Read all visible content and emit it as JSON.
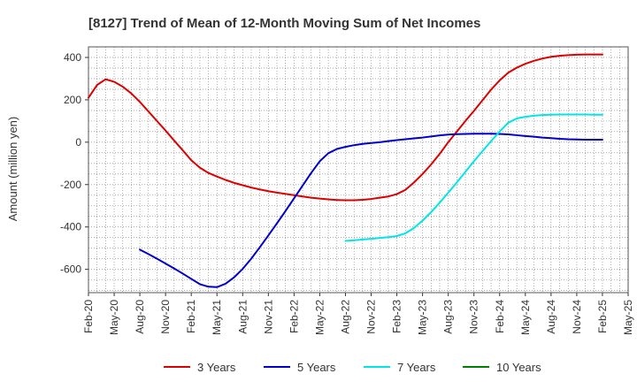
{
  "chart_data": {
    "type": "line",
    "title": "[8127]  Trend of Mean of 12-Month Moving Sum of Net Incomes",
    "ylabel": "Amount (million yen)",
    "xlabel": "",
    "ylim": [
      -710,
      450
    ],
    "y_ticks": [
      400,
      200,
      0,
      -200,
      -400,
      -600
    ],
    "x_ticks": [
      "Feb-20",
      "May-20",
      "Aug-20",
      "Nov-20",
      "Feb-21",
      "May-21",
      "Aug-21",
      "Nov-21",
      "Feb-22",
      "May-22",
      "Aug-22",
      "Nov-22",
      "Feb-23",
      "May-23",
      "Aug-23",
      "Nov-23",
      "Feb-24",
      "May-24",
      "Aug-24",
      "Nov-24",
      "Feb-25",
      "May-25"
    ],
    "x_start": "2020-02",
    "x_end": "2025-05",
    "grid": true,
    "legend_position": "bottom",
    "series": [
      {
        "name": "3 Years",
        "color": "#dd0000",
        "points": [
          [
            "2020-02",
            210
          ],
          [
            "2020-03",
            270
          ],
          [
            "2020-04",
            297
          ],
          [
            "2020-05",
            285
          ],
          [
            "2020-06",
            262
          ],
          [
            "2020-07",
            230
          ],
          [
            "2020-08",
            190
          ],
          [
            "2020-09",
            145
          ],
          [
            "2020-10",
            100
          ],
          [
            "2020-11",
            55
          ],
          [
            "2020-12",
            8
          ],
          [
            "2021-01",
            -38
          ],
          [
            "2021-02",
            -85
          ],
          [
            "2021-03",
            -120
          ],
          [
            "2021-04",
            -145
          ],
          [
            "2021-05",
            -162
          ],
          [
            "2021-06",
            -178
          ],
          [
            "2021-07",
            -192
          ],
          [
            "2021-08",
            -203
          ],
          [
            "2021-09",
            -214
          ],
          [
            "2021-10",
            -223
          ],
          [
            "2021-11",
            -231
          ],
          [
            "2021-12",
            -238
          ],
          [
            "2022-01",
            -244
          ],
          [
            "2022-02",
            -250
          ],
          [
            "2022-03",
            -256
          ],
          [
            "2022-04",
            -262
          ],
          [
            "2022-05",
            -266
          ],
          [
            "2022-06",
            -270
          ],
          [
            "2022-07",
            -273
          ],
          [
            "2022-08",
            -274
          ],
          [
            "2022-09",
            -274
          ],
          [
            "2022-10",
            -272
          ],
          [
            "2022-11",
            -268
          ],
          [
            "2022-12",
            -262
          ],
          [
            "2023-01",
            -256
          ],
          [
            "2023-02",
            -245
          ],
          [
            "2023-03",
            -225
          ],
          [
            "2023-04",
            -190
          ],
          [
            "2023-05",
            -150
          ],
          [
            "2023-06",
            -105
          ],
          [
            "2023-07",
            -55
          ],
          [
            "2023-08",
            0
          ],
          [
            "2023-09",
            50
          ],
          [
            "2023-10",
            100
          ],
          [
            "2023-11",
            148
          ],
          [
            "2023-12",
            198
          ],
          [
            "2024-01",
            248
          ],
          [
            "2024-02",
            292
          ],
          [
            "2024-03",
            328
          ],
          [
            "2024-04",
            352
          ],
          [
            "2024-05",
            370
          ],
          [
            "2024-06",
            384
          ],
          [
            "2024-07",
            395
          ],
          [
            "2024-08",
            403
          ],
          [
            "2024-09",
            408
          ],
          [
            "2024-10",
            411
          ],
          [
            "2024-11",
            413
          ],
          [
            "2024-12",
            414
          ],
          [
            "2025-01",
            414
          ],
          [
            "2025-02",
            414
          ]
        ]
      },
      {
        "name": "5 Years",
        "color": "#0000cc",
        "points": [
          [
            "2020-08",
            -507
          ],
          [
            "2020-09",
            -528
          ],
          [
            "2020-10",
            -550
          ],
          [
            "2020-11",
            -573
          ],
          [
            "2020-12",
            -596
          ],
          [
            "2021-01",
            -620
          ],
          [
            "2021-02",
            -645
          ],
          [
            "2021-03",
            -670
          ],
          [
            "2021-04",
            -682
          ],
          [
            "2021-05",
            -684
          ],
          [
            "2021-06",
            -668
          ],
          [
            "2021-07",
            -638
          ],
          [
            "2021-08",
            -598
          ],
          [
            "2021-09",
            -550
          ],
          [
            "2021-10",
            -496
          ],
          [
            "2021-11",
            -440
          ],
          [
            "2021-12",
            -383
          ],
          [
            "2022-01",
            -325
          ],
          [
            "2022-02",
            -265
          ],
          [
            "2022-03",
            -205
          ],
          [
            "2022-04",
            -145
          ],
          [
            "2022-05",
            -90
          ],
          [
            "2022-06",
            -52
          ],
          [
            "2022-07",
            -32
          ],
          [
            "2022-08",
            -22
          ],
          [
            "2022-09",
            -14
          ],
          [
            "2022-10",
            -8
          ],
          [
            "2022-11",
            -4
          ],
          [
            "2022-12",
            0
          ],
          [
            "2023-01",
            5
          ],
          [
            "2023-02",
            10
          ],
          [
            "2023-03",
            14
          ],
          [
            "2023-04",
            18
          ],
          [
            "2023-05",
            22
          ],
          [
            "2023-06",
            27
          ],
          [
            "2023-07",
            32
          ],
          [
            "2023-08",
            36
          ],
          [
            "2023-09",
            38
          ],
          [
            "2023-10",
            39
          ],
          [
            "2023-11",
            40
          ],
          [
            "2023-12",
            40
          ],
          [
            "2024-01",
            40
          ],
          [
            "2024-02",
            39
          ],
          [
            "2024-03",
            37
          ],
          [
            "2024-04",
            33
          ],
          [
            "2024-05",
            29
          ],
          [
            "2024-06",
            26
          ],
          [
            "2024-07",
            22
          ],
          [
            "2024-08",
            19
          ],
          [
            "2024-09",
            16
          ],
          [
            "2024-10",
            14
          ],
          [
            "2024-11",
            13
          ],
          [
            "2024-12",
            12
          ],
          [
            "2025-01",
            12
          ],
          [
            "2025-02",
            12
          ]
        ]
      },
      {
        "name": "7 Years",
        "color": "#00e5e5",
        "points": [
          [
            "2022-08",
            -466
          ],
          [
            "2022-09",
            -463
          ],
          [
            "2022-10",
            -459
          ],
          [
            "2022-11",
            -456
          ],
          [
            "2022-12",
            -452
          ],
          [
            "2023-01",
            -448
          ],
          [
            "2023-02",
            -443
          ],
          [
            "2023-03",
            -430
          ],
          [
            "2023-04",
            -405
          ],
          [
            "2023-05",
            -370
          ],
          [
            "2023-06",
            -330
          ],
          [
            "2023-07",
            -285
          ],
          [
            "2023-08",
            -238
          ],
          [
            "2023-09",
            -190
          ],
          [
            "2023-10",
            -140
          ],
          [
            "2023-11",
            -90
          ],
          [
            "2023-12",
            -42
          ],
          [
            "2024-01",
            5
          ],
          [
            "2024-02",
            50
          ],
          [
            "2024-03",
            92
          ],
          [
            "2024-04",
            112
          ],
          [
            "2024-05",
            120
          ],
          [
            "2024-06",
            125
          ],
          [
            "2024-07",
            128
          ],
          [
            "2024-08",
            130
          ],
          [
            "2024-09",
            131
          ],
          [
            "2024-10",
            131
          ],
          [
            "2024-11",
            131
          ],
          [
            "2024-12",
            131
          ],
          [
            "2025-01",
            130
          ],
          [
            "2025-02",
            130
          ]
        ]
      },
      {
        "name": "10 Years",
        "color": "#008000",
        "points": []
      }
    ]
  }
}
